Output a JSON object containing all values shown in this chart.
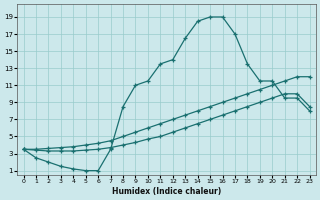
{
  "xlabel": "Humidex (Indice chaleur)",
  "bg_color": "#cce8eb",
  "grid_color": "#99cccc",
  "line_color": "#1a7070",
  "xlim": [
    -0.5,
    23.5
  ],
  "ylim": [
    0.5,
    20.5
  ],
  "xticks": [
    0,
    1,
    2,
    3,
    4,
    5,
    6,
    7,
    8,
    9,
    10,
    11,
    12,
    13,
    14,
    15,
    16,
    17,
    18,
    19,
    20,
    21,
    22,
    23
  ],
  "yticks": [
    1,
    3,
    5,
    7,
    9,
    11,
    13,
    15,
    17,
    19
  ],
  "curve1_x": [
    0,
    1,
    2,
    3,
    4,
    5,
    6,
    7,
    8,
    9,
    10,
    11,
    12,
    13,
    14,
    15,
    16,
    17,
    18,
    19,
    20,
    21,
    22,
    23
  ],
  "curve1_y": [
    3.5,
    2.5,
    2.0,
    1.5,
    1.2,
    1.0,
    1.0,
    3.5,
    8.5,
    11.0,
    11.5,
    13.5,
    14.0,
    16.5,
    18.5,
    19.0,
    19.0,
    17.0,
    13.5,
    11.5,
    11.5,
    9.5,
    9.5,
    8.0
  ],
  "curve2_x": [
    0,
    1,
    2,
    3,
    4,
    5,
    6,
    7,
    8,
    9,
    10,
    11,
    12,
    13,
    14,
    15,
    16,
    17,
    18,
    19,
    20,
    21,
    22,
    23
  ],
  "curve2_y": [
    3.5,
    3.5,
    3.6,
    3.7,
    3.8,
    4.0,
    4.2,
    4.5,
    5.0,
    5.5,
    6.0,
    6.5,
    7.0,
    7.5,
    8.0,
    8.5,
    9.0,
    9.5,
    10.0,
    10.5,
    11.0,
    11.5,
    12.0,
    12.0
  ],
  "curve3_x": [
    0,
    1,
    2,
    3,
    4,
    5,
    6,
    7,
    8,
    9,
    10,
    11,
    12,
    13,
    14,
    15,
    16,
    17,
    18,
    19,
    20,
    21,
    22,
    23
  ],
  "curve3_y": [
    3.5,
    3.4,
    3.3,
    3.3,
    3.3,
    3.4,
    3.5,
    3.7,
    4.0,
    4.3,
    4.7,
    5.0,
    5.5,
    6.0,
    6.5,
    7.0,
    7.5,
    8.0,
    8.5,
    9.0,
    9.5,
    10.0,
    10.0,
    8.5
  ]
}
